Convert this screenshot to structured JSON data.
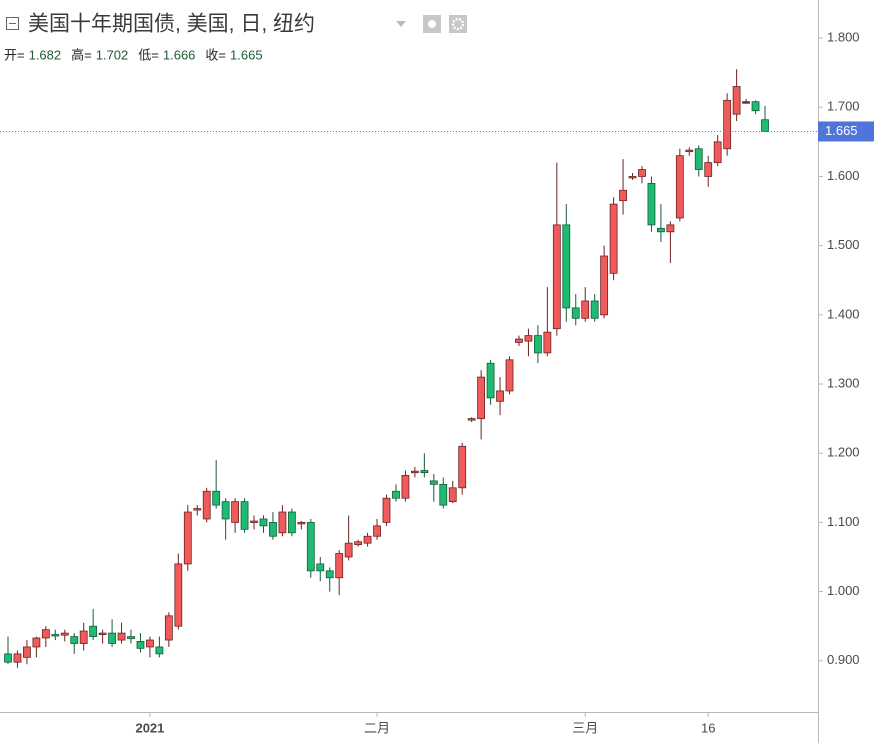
{
  "chart_data": {
    "type": "candlestick",
    "title": "美国十年期国债, 美国, 日, 纽约",
    "legend": [
      {
        "label": "开=",
        "value": 1.682
      },
      {
        "label": "高=",
        "value": 1.702
      },
      {
        "label": "低=",
        "value": 1.666
      },
      {
        "label": "收=",
        "value": 1.665
      }
    ],
    "categories": [
      null,
      null,
      null,
      null,
      null,
      null,
      null,
      null,
      null,
      null,
      null,
      null,
      null,
      null,
      null,
      "2021",
      null,
      null,
      null,
      null,
      null,
      null,
      null,
      null,
      null,
      null,
      null,
      null,
      null,
      null,
      null,
      null,
      null,
      null,
      null,
      null,
      null,
      null,
      null,
      "二月",
      null,
      null,
      null,
      null,
      null,
      null,
      null,
      null,
      null,
      null,
      null,
      null,
      null,
      null,
      null,
      null,
      null,
      null,
      null,
      null,
      null,
      "三月",
      null,
      null,
      null,
      null,
      null,
      null,
      null,
      null,
      null,
      null,
      null,
      null,
      "16",
      null,
      null,
      null,
      null,
      null,
      null
    ],
    "open": [
      0.91,
      0.898,
      0.905,
      0.92,
      0.933,
      0.938,
      0.937,
      0.935,
      0.925,
      0.95,
      0.938,
      0.94,
      0.93,
      0.935,
      0.928,
      0.92,
      0.92,
      0.93,
      0.95,
      1.04,
      1.118,
      1.105,
      1.145,
      1.13,
      1.1,
      1.13,
      1.1,
      1.105,
      1.1,
      1.085,
      1.115,
      1.098,
      1.1,
      1.04,
      1.03,
      1.02,
      1.05,
      1.068,
      1.07,
      1.08,
      1.1,
      1.145,
      1.135,
      1.172,
      1.175,
      1.16,
      1.155,
      1.13,
      1.15,
      1.248,
      1.25,
      1.33,
      1.275,
      1.29,
      1.36,
      1.362,
      1.37,
      1.345,
      1.38,
      1.53,
      1.41,
      1.395,
      1.42,
      1.4,
      1.46,
      1.565,
      1.598,
      1.6,
      1.59,
      1.525,
      1.52,
      1.54,
      1.637,
      1.64,
      1.6,
      1.62,
      1.64,
      1.69,
      1.708,
      1.708,
      1.682
    ],
    "high": [
      0.935,
      0.915,
      0.93,
      0.935,
      0.95,
      0.945,
      0.945,
      0.94,
      0.955,
      0.975,
      0.945,
      0.96,
      0.955,
      0.945,
      0.94,
      0.935,
      0.935,
      0.97,
      1.055,
      1.125,
      1.125,
      1.15,
      1.19,
      1.135,
      1.135,
      1.135,
      1.11,
      1.11,
      1.115,
      1.125,
      1.12,
      1.102,
      1.105,
      1.05,
      1.035,
      1.06,
      1.11,
      1.075,
      1.085,
      1.105,
      1.14,
      1.155,
      1.175,
      1.18,
      1.2,
      1.17,
      1.165,
      1.16,
      1.215,
      1.252,
      1.32,
      1.335,
      1.31,
      1.34,
      1.37,
      1.38,
      1.385,
      1.44,
      1.62,
      1.56,
      1.43,
      1.44,
      1.43,
      1.5,
      1.57,
      1.625,
      1.605,
      1.615,
      1.6,
      1.56,
      1.535,
      1.64,
      1.642,
      1.645,
      1.63,
      1.66,
      1.72,
      1.755,
      1.712,
      1.71,
      1.702
    ],
    "low": [
      0.895,
      0.89,
      0.895,
      0.905,
      0.92,
      0.93,
      0.928,
      0.91,
      0.915,
      0.93,
      0.925,
      0.92,
      0.925,
      0.925,
      0.912,
      0.905,
      0.905,
      0.92,
      0.945,
      1.03,
      1.11,
      1.1,
      1.12,
      1.075,
      1.085,
      1.085,
      1.09,
      1.085,
      1.075,
      1.08,
      1.08,
      1.09,
      1.02,
      1.015,
      1.0,
      0.995,
      1.045,
      1.065,
      1.065,
      1.075,
      1.095,
      1.13,
      1.13,
      1.165,
      1.165,
      1.13,
      1.12,
      1.128,
      1.14,
      1.245,
      1.22,
      1.27,
      1.255,
      1.285,
      1.355,
      1.34,
      1.33,
      1.34,
      1.37,
      1.39,
      1.385,
      1.39,
      1.39,
      1.395,
      1.45,
      1.545,
      1.595,
      1.59,
      1.52,
      1.505,
      1.475,
      1.535,
      1.63,
      1.6,
      1.585,
      1.615,
      1.63,
      1.68,
      1.705,
      1.69,
      1.666
    ],
    "close": [
      0.898,
      0.91,
      0.92,
      0.933,
      0.945,
      0.937,
      0.94,
      0.925,
      0.943,
      0.935,
      0.94,
      0.925,
      0.94,
      0.932,
      0.918,
      0.93,
      0.91,
      0.965,
      1.04,
      1.115,
      1.12,
      1.145,
      1.125,
      1.105,
      1.13,
      1.09,
      1.102,
      1.095,
      1.08,
      1.115,
      1.085,
      1.1,
      1.03,
      1.03,
      1.02,
      1.055,
      1.07,
      1.072,
      1.08,
      1.095,
      1.135,
      1.135,
      1.168,
      1.174,
      1.172,
      1.155,
      1.125,
      1.15,
      1.21,
      1.25,
      1.31,
      1.28,
      1.29,
      1.335,
      1.365,
      1.37,
      1.345,
      1.375,
      1.53,
      1.41,
      1.395,
      1.42,
      1.395,
      1.485,
      1.56,
      1.58,
      1.6,
      1.61,
      1.53,
      1.52,
      1.53,
      1.63,
      1.638,
      1.61,
      1.62,
      1.65,
      1.71,
      1.73,
      1.708,
      1.695,
      1.665
    ],
    "up_color": "#ef5b5b",
    "down_color": "#1fbb72",
    "ylim": [
      0.826,
      1.855
    ],
    "yticks": [
      {
        "value": 0.9,
        "label": "0.900"
      },
      {
        "value": 1.0,
        "label": "1.000"
      },
      {
        "value": 1.1,
        "label": "1.100"
      },
      {
        "value": 1.2,
        "label": "1.200"
      },
      {
        "value": 1.3,
        "label": "1.300"
      },
      {
        "value": 1.4,
        "label": "1.400"
      },
      {
        "value": 1.5,
        "label": "1.500"
      },
      {
        "value": 1.6,
        "label": "1.600"
      },
      {
        "value": 1.7,
        "label": "1.700"
      },
      {
        "value": 1.8,
        "label": "1.800"
      }
    ],
    "grid": false
  }
}
